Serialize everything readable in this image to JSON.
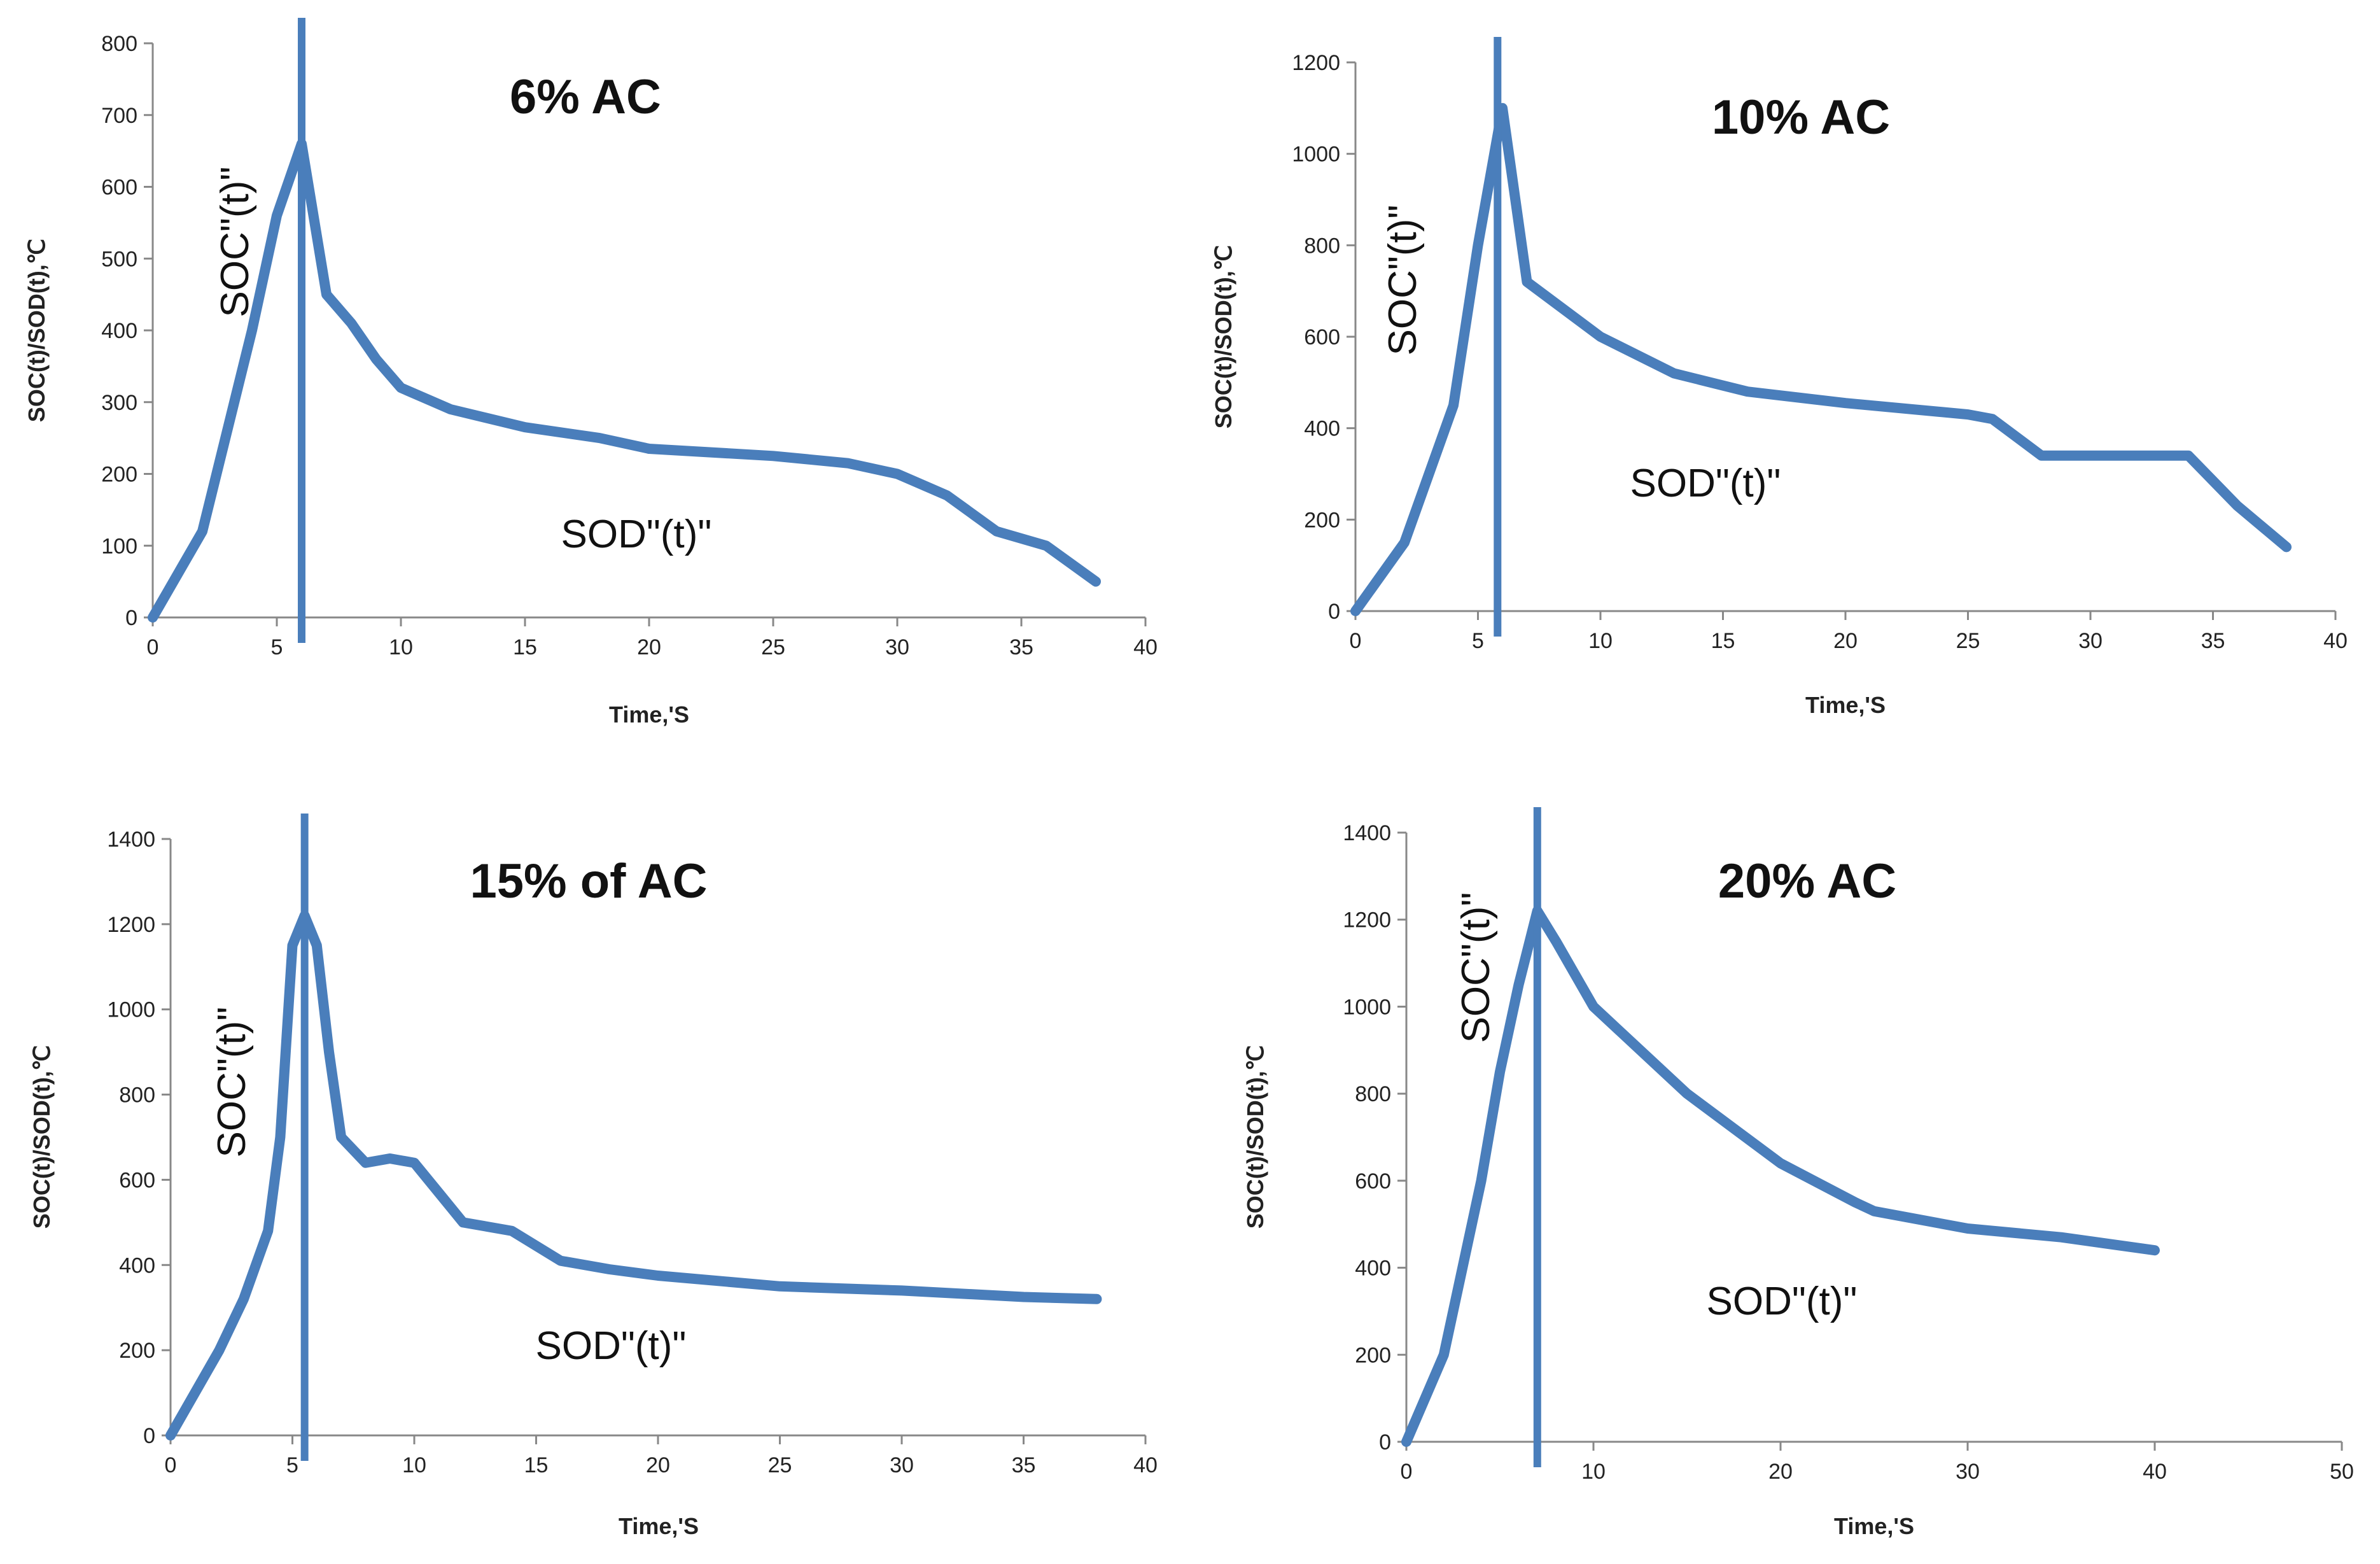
{
  "colors": {
    "series": "#4a7ebb",
    "axis": "#888888",
    "text": "#222222"
  },
  "chart_data": [
    {
      "type": "line",
      "title": "6% AC",
      "xlabel": "Time,'S",
      "ylabel": "SOC(t)/SOD(t),℃",
      "xlim": [
        0,
        40
      ],
      "ylim": [
        0,
        800
      ],
      "xticks": [
        0,
        5,
        10,
        15,
        20,
        25,
        30,
        35,
        40
      ],
      "yticks": [
        0,
        100,
        200,
        300,
        400,
        500,
        600,
        700,
        800
      ],
      "vline_x": 6,
      "annotations": {
        "soc": "SOC\"(t)\"",
        "sod": "SOD\"(t)\""
      },
      "series": [
        {
          "name": "SOC/SOD",
          "x": [
            0,
            2,
            3,
            4,
            5,
            6,
            7,
            8,
            9,
            10,
            12,
            15,
            18,
            20,
            25,
            28,
            30,
            32,
            34,
            36,
            38
          ],
          "y": [
            0,
            120,
            260,
            400,
            560,
            660,
            450,
            410,
            360,
            320,
            290,
            265,
            250,
            235,
            225,
            215,
            200,
            170,
            120,
            100,
            50
          ]
        }
      ]
    },
    {
      "type": "line",
      "title": "10% AC",
      "xlabel": "Time,'S",
      "ylabel": "SOC(t)/SOD(t),℃",
      "xlim": [
        0,
        40
      ],
      "ylim": [
        0,
        1200
      ],
      "xticks": [
        0,
        5,
        10,
        15,
        20,
        25,
        30,
        35,
        40
      ],
      "yticks": [
        0,
        200,
        400,
        600,
        800,
        1000,
        1200
      ],
      "vline_x": 5.8,
      "annotations": {
        "soc": "SOC\"(t)\"",
        "sod": "SOD\"(t)\""
      },
      "series": [
        {
          "name": "SOC/SOD",
          "x": [
            0,
            2,
            4,
            5,
            6,
            7,
            10,
            13,
            16,
            20,
            25,
            26,
            28,
            30,
            32,
            34,
            36,
            38
          ],
          "y": [
            0,
            150,
            450,
            800,
            1100,
            720,
            600,
            520,
            480,
            455,
            430,
            420,
            340,
            340,
            340,
            340,
            230,
            140
          ]
        }
      ]
    },
    {
      "type": "line",
      "title": "15% of AC",
      "xlabel": "Time,'S",
      "ylabel": "SOC(t)/SOD(t),℃",
      "xlim": [
        0,
        40
      ],
      "ylim": [
        0,
        1400
      ],
      "xticks": [
        0,
        5,
        10,
        15,
        20,
        25,
        30,
        35,
        40
      ],
      "yticks": [
        0,
        200,
        400,
        600,
        800,
        1000,
        1200,
        1400
      ],
      "vline_x": 5.5,
      "annotations": {
        "soc": "SOC\"(t)\"",
        "sod": "SOD\"(t)\""
      },
      "series": [
        {
          "name": "SOC/SOD",
          "x": [
            0,
            2,
            3,
            4,
            4.5,
            5,
            5.5,
            6,
            6.5,
            7,
            8,
            9,
            10,
            11,
            12,
            14,
            16,
            18,
            20,
            25,
            30,
            35,
            38
          ],
          "y": [
            0,
            200,
            320,
            480,
            700,
            1150,
            1220,
            1150,
            900,
            700,
            640,
            650,
            640,
            570,
            500,
            480,
            410,
            390,
            375,
            350,
            340,
            325,
            320
          ]
        }
      ]
    },
    {
      "type": "line",
      "title": "20% AC",
      "xlabel": "Time,'S",
      "ylabel": "SOC(t)/SOD(t),℃",
      "xlim": [
        0,
        50
      ],
      "ylim": [
        0,
        1400
      ],
      "xticks": [
        0,
        10,
        20,
        30,
        40,
        50
      ],
      "yticks": [
        0,
        200,
        400,
        600,
        800,
        1000,
        1200,
        1400
      ],
      "vline_x": 7,
      "annotations": {
        "soc": "SOC\"(t)\"",
        "sod": "SOD\"(t)\""
      },
      "series": [
        {
          "name": "SOC/SOD",
          "x": [
            0,
            2,
            4,
            5,
            6,
            7,
            8,
            10,
            15,
            20,
            24,
            25,
            30,
            35,
            40
          ],
          "y": [
            0,
            200,
            600,
            850,
            1050,
            1220,
            1150,
            1000,
            800,
            640,
            550,
            530,
            490,
            470,
            440
          ]
        }
      ]
    }
  ]
}
